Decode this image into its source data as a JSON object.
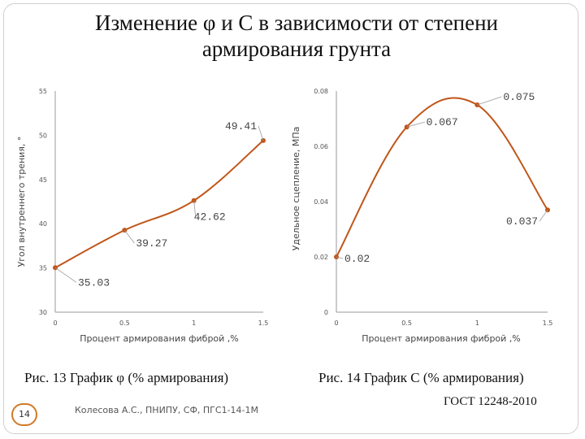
{
  "slide": {
    "title": "Изменение φ и С в зависимости от степени армирования грунта",
    "caption_left": "Рис. 13 График φ (% армирования)",
    "caption_right": "Рис. 14 График С (% армирования)",
    "gost": "ГОСТ 12248-2010",
    "author": "Колесова А.С., ПНИПУ, СФ, ПГС1-14-1М",
    "page_number": "14",
    "accent_color": "#c0561a",
    "badge_border_color": "#d07a2a"
  },
  "chart_data": [
    {
      "type": "line",
      "smooth": true,
      "x": [
        0,
        0.5,
        1,
        1.5
      ],
      "x_tick_labels": [
        "0",
        "0.5",
        "1",
        "1.5"
      ],
      "values": [
        35.03,
        39.27,
        42.62,
        49.41
      ],
      "data_labels": [
        "35.03",
        "39.27",
        "42.62",
        "49.41"
      ],
      "ylim": [
        30,
        55
      ],
      "y_ticks": [
        30,
        35,
        40,
        45,
        50,
        55
      ],
      "y_tick_labels": [
        "30",
        "35",
        "40",
        "45",
        "50",
        "55"
      ],
      "xlabel": "Процент армирования фиброй ,%",
      "ylabel": "Угол внутреннего трения, °",
      "grid": false,
      "color": "#c0561a"
    },
    {
      "type": "line",
      "smooth": true,
      "x": [
        0,
        0.5,
        1,
        1.5
      ],
      "x_tick_labels": [
        "0",
        "0.5",
        "1",
        "1.5"
      ],
      "values": [
        0.02,
        0.067,
        0.075,
        0.037
      ],
      "data_labels": [
        "0.02",
        "0.067",
        "0.075",
        "0.037"
      ],
      "ylim": [
        0,
        0.08
      ],
      "y_ticks": [
        0,
        0.02,
        0.04,
        0.06,
        0.08
      ],
      "y_tick_labels": [
        "0",
        "0.02",
        "0.04",
        "0.06",
        "0.08"
      ],
      "xlabel": "Процент армирования фиброй ,%",
      "ylabel": "Удельное сцепление, МПа",
      "grid": false,
      "color": "#c0561a"
    }
  ]
}
